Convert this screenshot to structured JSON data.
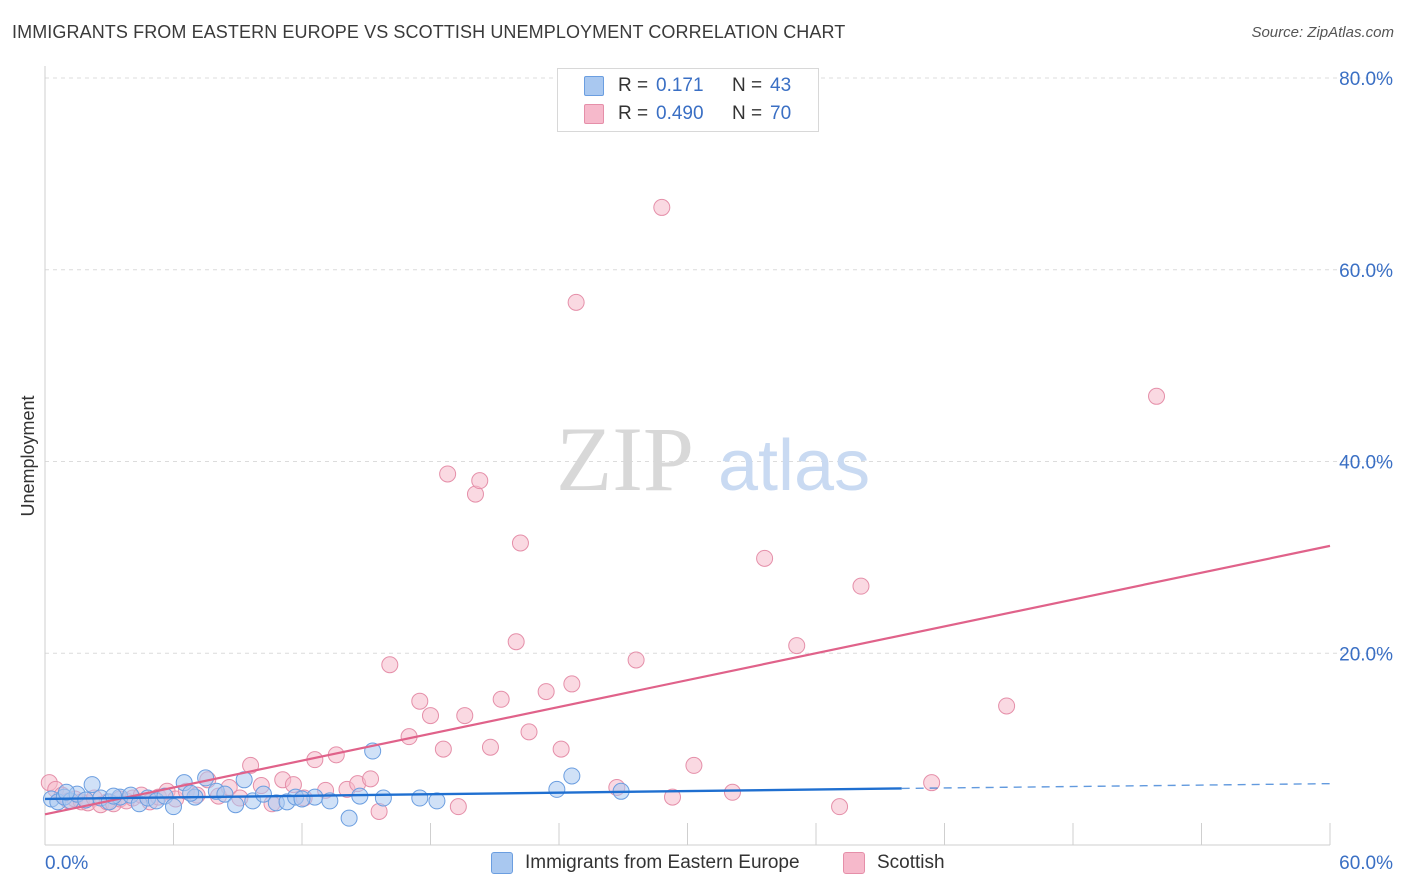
{
  "header": {
    "title": "IMMIGRANTS FROM EASTERN EUROPE VS SCOTTISH UNEMPLOYMENT CORRELATION CHART",
    "source": "Source: ZipAtlas.com"
  },
  "legend": {
    "series": [
      {
        "r_label": "R =",
        "r_value": "0.171",
        "n_label": "N =",
        "n_value": "43",
        "color": "#a9c8f0"
      },
      {
        "r_label": "R =",
        "r_value": "0.490",
        "n_label": "N =",
        "n_value": "70",
        "color": "#f6b9cb"
      }
    ]
  },
  "watermark": {
    "zip": "ZIP",
    "atlas": "atlas"
  },
  "colors": {
    "blue_fill": "#a9c8f0",
    "blue_stroke": "#6b9ee0",
    "blue_line": "#1f6fd0",
    "pink_fill": "#f6b9cb",
    "pink_stroke": "#e58fa9",
    "pink_line": "#e0628a",
    "tick_text": "#3a6fc4"
  },
  "chart_data": {
    "type": "scatter",
    "title": "IMMIGRANTS FROM EASTERN EUROPE VS SCOTTISH UNEMPLOYMENT CORRELATION CHART",
    "xlabel": "",
    "ylabel": "Unemployment",
    "xlim": [
      0,
      60
    ],
    "ylim": [
      0,
      80
    ],
    "x_tick_labels": [
      "0.0%",
      "60.0%"
    ],
    "y_ticks": [
      20,
      40,
      60,
      80
    ],
    "y_tick_labels": [
      "20.0%",
      "40.0%",
      "60.0%",
      "80.0%"
    ],
    "series": [
      {
        "name": "Immigrants from Eastern Europe",
        "color": "#a9c8f0",
        "points": [
          [
            0.3,
            4.8
          ],
          [
            0.6,
            4.5
          ],
          [
            0.9,
            5.0
          ],
          [
            1.2,
            4.6
          ],
          [
            1.5,
            5.3
          ],
          [
            1.9,
            4.7
          ],
          [
            2.2,
            6.3
          ],
          [
            2.6,
            4.9
          ],
          [
            3.0,
            4.5
          ],
          [
            3.5,
            5.0
          ],
          [
            4.0,
            5.2
          ],
          [
            4.4,
            4.3
          ],
          [
            4.8,
            4.9
          ],
          [
            5.2,
            4.6
          ],
          [
            5.6,
            5.1
          ],
          [
            6.0,
            4.0
          ],
          [
            6.5,
            6.5
          ],
          [
            7.0,
            5.0
          ],
          [
            7.5,
            7.0
          ],
          [
            8.0,
            5.6
          ],
          [
            8.4,
            5.3
          ],
          [
            8.9,
            4.2
          ],
          [
            9.3,
            6.8
          ],
          [
            9.7,
            4.6
          ],
          [
            10.2,
            5.3
          ],
          [
            10.8,
            4.4
          ],
          [
            11.3,
            4.5
          ],
          [
            11.7,
            5.0
          ],
          [
            12.6,
            5.0
          ],
          [
            13.3,
            4.6
          ],
          [
            14.2,
            2.8
          ],
          [
            14.7,
            5.1
          ],
          [
            15.3,
            9.8
          ],
          [
            15.8,
            4.9
          ],
          [
            17.5,
            4.9
          ],
          [
            18.3,
            4.6
          ],
          [
            23.9,
            5.8
          ],
          [
            24.6,
            7.2
          ],
          [
            26.9,
            5.6
          ],
          [
            1.0,
            5.5
          ],
          [
            3.2,
            5.1
          ],
          [
            6.8,
            5.4
          ],
          [
            12.0,
            4.8
          ]
        ],
        "trend": {
          "x1": 0,
          "y1": 4.8,
          "x2": 40,
          "y2": 5.9,
          "dash_x2": 60,
          "dash_y2": 6.4
        }
      },
      {
        "name": "Scottish",
        "color": "#f6b9cb",
        "points": [
          [
            0.2,
            6.5
          ],
          [
            0.5,
            5.8
          ],
          [
            0.8,
            5.2
          ],
          [
            1.1,
            4.6
          ],
          [
            1.4,
            4.8
          ],
          [
            1.7,
            4.5
          ],
          [
            2.0,
            4.4
          ],
          [
            2.3,
            4.9
          ],
          [
            2.6,
            4.2
          ],
          [
            2.9,
            4.5
          ],
          [
            3.2,
            4.3
          ],
          [
            3.5,
            4.8
          ],
          [
            3.8,
            4.6
          ],
          [
            4.1,
            4.9
          ],
          [
            4.5,
            5.2
          ],
          [
            4.9,
            4.5
          ],
          [
            5.3,
            5.0
          ],
          [
            5.7,
            5.6
          ],
          [
            6.1,
            4.8
          ],
          [
            6.6,
            5.6
          ],
          [
            7.1,
            5.2
          ],
          [
            7.6,
            6.8
          ],
          [
            8.1,
            5.1
          ],
          [
            8.6,
            6.0
          ],
          [
            9.1,
            4.9
          ],
          [
            9.6,
            8.3
          ],
          [
            10.1,
            6.2
          ],
          [
            10.6,
            4.3
          ],
          [
            11.1,
            6.8
          ],
          [
            11.6,
            6.3
          ],
          [
            12.1,
            4.9
          ],
          [
            12.6,
            8.9
          ],
          [
            13.1,
            5.7
          ],
          [
            13.6,
            9.4
          ],
          [
            14.1,
            5.8
          ],
          [
            14.6,
            6.4
          ],
          [
            15.2,
            6.9
          ],
          [
            15.6,
            3.5
          ],
          [
            16.1,
            18.8
          ],
          [
            17.0,
            11.3
          ],
          [
            17.5,
            15.0
          ],
          [
            18.0,
            13.5
          ],
          [
            18.6,
            10.0
          ],
          [
            18.8,
            38.7
          ],
          [
            19.3,
            4.0
          ],
          [
            19.6,
            13.5
          ],
          [
            20.1,
            36.6
          ],
          [
            20.3,
            38.0
          ],
          [
            20.8,
            10.2
          ],
          [
            21.3,
            15.2
          ],
          [
            22.0,
            21.2
          ],
          [
            22.2,
            31.5
          ],
          [
            22.6,
            11.8
          ],
          [
            23.4,
            16.0
          ],
          [
            24.1,
            10.0
          ],
          [
            24.6,
            16.8
          ],
          [
            24.8,
            56.6
          ],
          [
            26.7,
            6.0
          ],
          [
            27.6,
            19.3
          ],
          [
            28.8,
            66.5
          ],
          [
            29.3,
            5.0
          ],
          [
            30.3,
            8.3
          ],
          [
            32.1,
            5.5
          ],
          [
            33.6,
            29.9
          ],
          [
            35.1,
            20.8
          ],
          [
            37.1,
            4.0
          ],
          [
            38.1,
            27.0
          ],
          [
            41.4,
            6.5
          ],
          [
            44.9,
            14.5
          ],
          [
            51.9,
            46.8
          ]
        ],
        "trend": {
          "x1": 0,
          "y1": 3.2,
          "x2": 60,
          "y2": 31.2
        }
      }
    ]
  },
  "bottom_legend": {
    "items": [
      {
        "label": "Immigrants from Eastern Europe",
        "color": "#a9c8f0"
      },
      {
        "label": "Scottish",
        "color": "#f6b9cb"
      }
    ]
  }
}
